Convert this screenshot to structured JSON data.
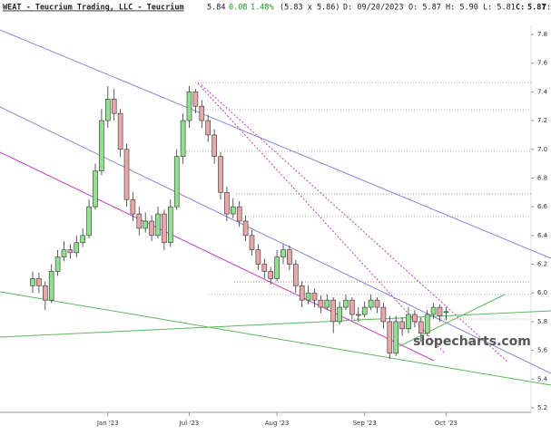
{
  "chart_data": {
    "type": "candlestick",
    "title": "WEAT - Teucrium Trading, LLC - Teucrium",
    "quote": {
      "last": "5.84",
      "change": "0.08",
      "change_pct": "1.48%",
      "bid_ask": "(5.83 x 5.86)",
      "date": "D: 09/20/2023",
      "open": "O: 5.87",
      "high": "H: 5.90",
      "low": "L: 5.81",
      "close_label": "C:",
      "close": "5.87",
      "more": "Y:"
    },
    "watermark": "slopecharts.com",
    "up_color": "#90e090",
    "down_color": "#e8a8a8",
    "ylim": [
      5.2,
      7.8
    ],
    "yticks": [
      5.2,
      5.4,
      5.6,
      5.8,
      {
        "value": 6,
        "label": "6.0"
      },
      6.2,
      6.4,
      6.6,
      6.8,
      {
        "value": 7,
        "label": "7.0"
      },
      7.2,
      7.4,
      7.6,
      7.8
    ],
    "categories": [
      null,
      null,
      null,
      null,
      null,
      null,
      null,
      null,
      null,
      null,
      null,
      null,
      "Jan '23",
      null,
      null,
      null,
      null,
      null,
      null,
      null,
      null,
      null,
      null,
      null,
      null,
      "Jul '23",
      null,
      null,
      null,
      null,
      null,
      null,
      null,
      null,
      null,
      null,
      null,
      null,
      null,
      "Aug '23",
      null,
      null,
      null,
      null,
      null,
      null,
      null,
      null,
      null,
      null,
      null,
      null,
      null,
      "Sep '23",
      null,
      null,
      null,
      null,
      null,
      null,
      null,
      null,
      null,
      null,
      null,
      null,
      "Oct '23"
    ],
    "candles": [
      [
        6.05,
        6.15,
        6.0,
        6.1
      ],
      [
        6.1,
        6.14,
        6.0,
        6.05
      ],
      [
        6.05,
        6.08,
        5.88,
        5.95
      ],
      [
        5.95,
        6.2,
        5.93,
        6.15
      ],
      [
        6.15,
        6.3,
        6.12,
        6.25
      ],
      [
        6.25,
        6.36,
        6.22,
        6.3
      ],
      [
        6.3,
        6.34,
        6.24,
        6.28
      ],
      [
        6.28,
        6.4,
        6.25,
        6.35
      ],
      [
        6.35,
        6.45,
        6.32,
        6.4
      ],
      [
        6.4,
        6.65,
        6.38,
        6.6
      ],
      [
        6.6,
        6.9,
        6.58,
        6.85
      ],
      [
        6.85,
        7.28,
        6.82,
        7.2
      ],
      [
        7.2,
        7.44,
        7.15,
        7.35
      ],
      [
        7.35,
        7.42,
        7.2,
        7.25
      ],
      [
        7.25,
        7.28,
        6.95,
        7.0
      ],
      [
        7.0,
        7.04,
        6.6,
        6.65
      ],
      [
        6.65,
        6.7,
        6.5,
        6.55
      ],
      [
        6.55,
        6.6,
        6.4,
        6.45
      ],
      [
        6.45,
        6.56,
        6.42,
        6.5
      ],
      [
        6.5,
        6.54,
        6.36,
        6.4
      ],
      [
        6.4,
        6.6,
        6.38,
        6.55
      ],
      [
        6.55,
        6.58,
        6.3,
        6.35
      ],
      [
        6.35,
        6.65,
        6.32,
        6.6
      ],
      [
        6.6,
        7.0,
        6.58,
        6.95
      ],
      [
        6.95,
        7.25,
        6.9,
        7.2
      ],
      [
        7.2,
        7.44,
        7.15,
        7.4
      ],
      [
        7.4,
        7.42,
        7.25,
        7.3
      ],
      [
        7.3,
        7.34,
        7.15,
        7.2
      ],
      [
        7.2,
        7.24,
        7.05,
        7.1
      ],
      [
        7.1,
        7.14,
        6.9,
        6.95
      ],
      [
        6.95,
        6.98,
        6.65,
        6.7
      ],
      [
        6.7,
        6.74,
        6.5,
        6.55
      ],
      [
        6.55,
        6.66,
        6.52,
        6.6
      ],
      [
        6.6,
        6.64,
        6.46,
        6.5
      ],
      [
        6.5,
        6.54,
        6.36,
        6.4
      ],
      [
        6.4,
        6.44,
        6.26,
        6.3
      ],
      [
        6.3,
        6.34,
        6.16,
        6.2
      ],
      [
        6.2,
        6.24,
        6.1,
        6.15
      ],
      [
        6.15,
        6.18,
        6.06,
        6.1
      ],
      [
        6.1,
        6.3,
        6.08,
        6.25
      ],
      [
        6.25,
        6.34,
        6.2,
        6.3
      ],
      [
        6.3,
        6.33,
        6.16,
        6.2
      ],
      [
        6.2,
        6.23,
        6.0,
        6.05
      ],
      [
        6.05,
        6.08,
        5.9,
        5.95
      ],
      [
        5.95,
        6.05,
        5.92,
        6.0
      ],
      [
        6.0,
        6.03,
        5.9,
        5.95
      ],
      [
        5.95,
        5.98,
        5.86,
        5.9
      ],
      [
        5.9,
        5.99,
        5.88,
        5.95
      ],
      [
        5.95,
        5.97,
        5.72,
        5.8
      ],
      [
        5.8,
        5.94,
        5.78,
        5.9
      ],
      [
        5.9,
        5.99,
        5.88,
        5.95
      ],
      [
        5.95,
        5.97,
        5.82,
        5.85
      ],
      [
        5.85,
        5.9,
        5.8,
        5.85
      ],
      [
        5.85,
        5.94,
        5.83,
        5.9
      ],
      [
        5.9,
        5.99,
        5.88,
        5.95
      ],
      [
        5.95,
        5.97,
        5.86,
        5.9
      ],
      [
        5.9,
        5.93,
        5.75,
        5.8
      ],
      [
        5.8,
        5.84,
        5.54,
        5.58
      ],
      [
        5.58,
        5.84,
        5.56,
        5.8
      ],
      [
        5.8,
        5.83,
        5.7,
        5.75
      ],
      [
        5.75,
        5.9,
        5.72,
        5.85
      ],
      [
        5.85,
        5.88,
        5.76,
        5.8
      ],
      [
        5.8,
        5.83,
        5.66,
        5.72
      ],
      [
        5.72,
        5.88,
        5.7,
        5.85
      ],
      [
        5.85,
        5.93,
        5.82,
        5.9
      ],
      [
        5.9,
        5.92,
        5.8,
        5.84
      ],
      [
        5.87,
        5.9,
        5.81,
        5.87
      ]
    ]
  }
}
